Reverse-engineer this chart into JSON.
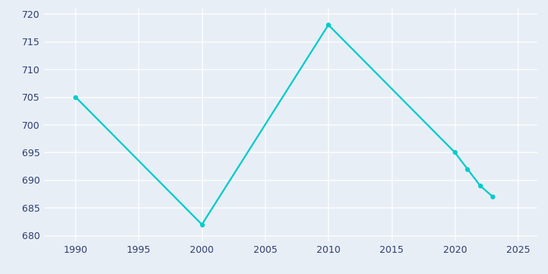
{
  "years": [
    1990,
    2000,
    2010,
    2020,
    2021,
    2022,
    2023
  ],
  "population": [
    705,
    682,
    718,
    695,
    692,
    689,
    687
  ],
  "line_color": "#00CCCC",
  "marker_color": "#00CCCC",
  "background_color": "#E8EEF6",
  "grid_color": "#FFFFFF",
  "text_color": "#2E3F6F",
  "xlim": [
    1987.5,
    2026.5
  ],
  "ylim": [
    679,
    721
  ],
  "yticks": [
    680,
    685,
    690,
    695,
    700,
    705,
    710,
    715,
    720
  ],
  "xticks": [
    1990,
    1995,
    2000,
    2005,
    2010,
    2015,
    2020,
    2025
  ],
  "figsize": [
    8.0,
    4.0
  ],
  "dpi": 100
}
